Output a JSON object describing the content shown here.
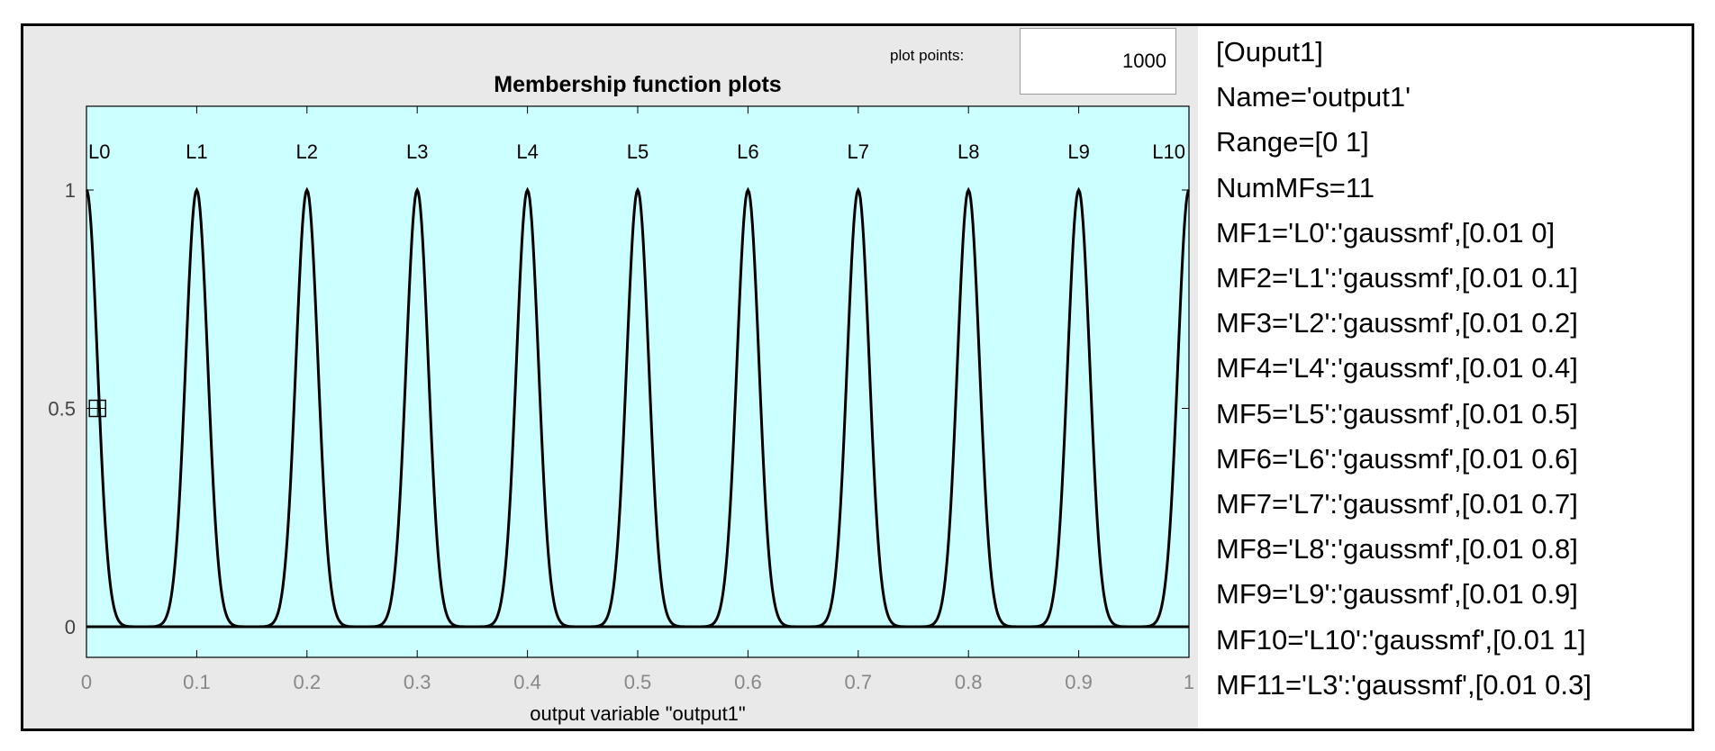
{
  "plot_points": {
    "label": "plot points:",
    "value": "1000"
  },
  "chart_data": {
    "type": "line",
    "title": "Membership function plots",
    "xlabel": "output variable \"output1\"",
    "ylabel": "",
    "xlim": [
      0,
      1
    ],
    "ylim": [
      0,
      1.2
    ],
    "x_ticks": [
      0,
      0.1,
      0.2,
      0.3,
      0.4,
      0.5,
      0.6,
      0.7,
      0.8,
      0.9,
      1
    ],
    "x_tick_labels": [
      "0",
      "0.1",
      "0.2",
      "0.3",
      "0.4",
      "0.5",
      "0.6",
      "0.7",
      "0.8",
      "0.9",
      "1"
    ],
    "y_ticks": [
      0,
      0.5,
      1
    ],
    "y_tick_labels": [
      "0",
      "0.5",
      "1"
    ],
    "mf_type": "gaussmf",
    "sigma": 0.01,
    "series": [
      {
        "name": "L0",
        "center": 0
      },
      {
        "name": "L1",
        "center": 0.1
      },
      {
        "name": "L2",
        "center": 0.2
      },
      {
        "name": "L3",
        "center": 0.3
      },
      {
        "name": "L4",
        "center": 0.4
      },
      {
        "name": "L5",
        "center": 0.5
      },
      {
        "name": "L6",
        "center": 0.6
      },
      {
        "name": "L7",
        "center": 0.7
      },
      {
        "name": "L8",
        "center": 0.8
      },
      {
        "name": "L9",
        "center": 0.9
      },
      {
        "name": "L10",
        "center": 1
      }
    ],
    "selected_marker": {
      "x": 0.01,
      "y": 0.5
    },
    "colors": {
      "plot_bg": "#ccffff",
      "line": "#000000",
      "panel_bg": "#e9e9e9"
    },
    "grid": false
  },
  "fis_text": {
    "lines": [
      "[Ouput1]",
      "Name='output1'",
      "Range=[0 1]",
      "NumMFs=11",
      "MF1='L0':'gaussmf',[0.01 0]",
      "MF2='L1':'gaussmf',[0.01 0.1]",
      "MF3='L2':'gaussmf',[0.01 0.2]",
      "MF4='L4':'gaussmf',[0.01 0.4]",
      "MF5='L5':'gaussmf',[0.01 0.5]",
      "MF6='L6':'gaussmf',[0.01 0.6]",
      "MF7='L7':'gaussmf',[0.01 0.7]",
      "MF8='L8':'gaussmf',[0.01 0.8]",
      "MF9='L9':'gaussmf',[0.01 0.9]",
      "MF10='L10':'gaussmf',[0.01 1]",
      "MF11='L3':'gaussmf',[0.01 0.3]"
    ]
  }
}
